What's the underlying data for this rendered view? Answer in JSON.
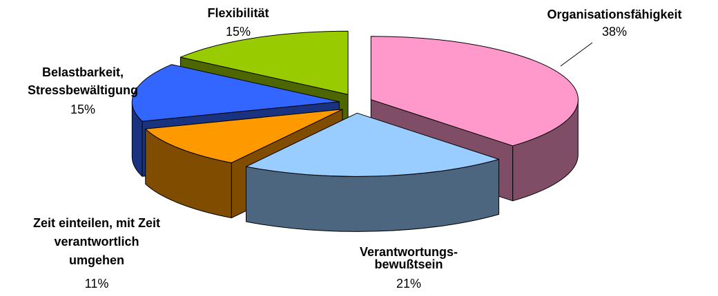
{
  "chart_data": {
    "type": "pie3d",
    "categories": [
      [
        "Organisationsfähigkeit"
      ],
      [
        "Verantwortungs-",
        "bewußtsein"
      ],
      [
        "Zeit einteilen, mit Zeit",
        "verantwortlich",
        "umgehen"
      ],
      [
        "Belastbarkeit,",
        "Stressbewältigung"
      ],
      [
        "Flexibilität"
      ]
    ],
    "values": [
      38,
      21,
      11,
      15,
      15
    ],
    "value_labels": [
      "38%",
      "21%",
      "11%",
      "15%",
      "15%"
    ],
    "colors": [
      "#ff99cc",
      "#99ccff",
      "#ff9900",
      "#3366ff",
      "#99cc00"
    ]
  }
}
